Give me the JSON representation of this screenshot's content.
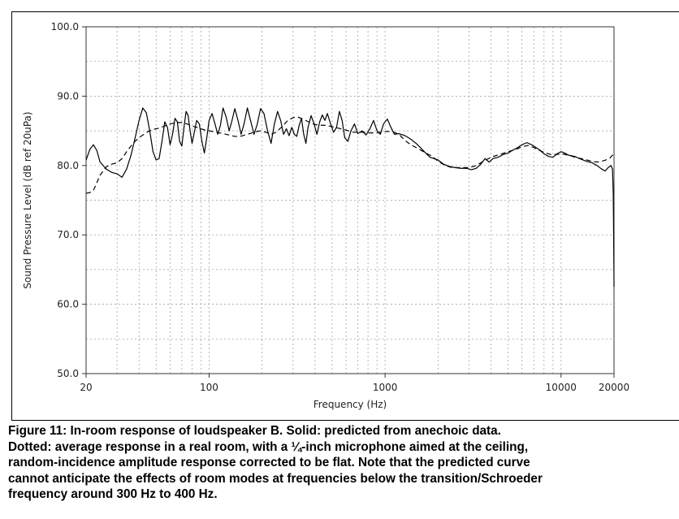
{
  "chart_data": {
    "type": "line",
    "title": "",
    "xlabel": "Frequency (Hz)",
    "ylabel": "Sound Pressure Level (dB ref 20uPa)",
    "xscale": "log",
    "xlim": [
      20,
      20000
    ],
    "ylim": [
      50,
      100
    ],
    "x_ticks": [
      {
        "value": 20,
        "label": "20"
      },
      {
        "value": 100,
        "label": "100"
      },
      {
        "value": 1000,
        "label": "1000"
      },
      {
        "value": 10000,
        "label": "10000"
      },
      {
        "value": 20000,
        "label": "20000"
      }
    ],
    "y_ticks": [
      {
        "value": 50,
        "label": "50.0"
      },
      {
        "value": 60,
        "label": "60.0"
      },
      {
        "value": 70,
        "label": "70.0"
      },
      {
        "value": 80,
        "label": "80.0"
      },
      {
        "value": 90,
        "label": "90.0"
      },
      {
        "value": 100,
        "label": "100.0"
      }
    ],
    "grid": true,
    "series": [
      {
        "name": "Solid: predicted from anechoic data",
        "style": "solid",
        "color": "#000000",
        "points": [
          [
            20,
            80.8
          ],
          [
            21,
            82.3
          ],
          [
            22,
            83.0
          ],
          [
            23,
            82.2
          ],
          [
            24,
            80.5
          ],
          [
            26,
            79.5
          ],
          [
            28,
            79.0
          ],
          [
            30,
            78.8
          ],
          [
            32,
            78.3
          ],
          [
            34,
            79.5
          ],
          [
            36,
            81.5
          ],
          [
            38,
            84.0
          ],
          [
            40,
            86.5
          ],
          [
            42,
            88.3
          ],
          [
            44,
            87.6
          ],
          [
            46,
            85.0
          ],
          [
            48,
            82.0
          ],
          [
            50,
            80.8
          ],
          [
            52,
            81.0
          ],
          [
            54,
            83.5
          ],
          [
            56,
            86.3
          ],
          [
            58,
            85.5
          ],
          [
            60,
            83.0
          ],
          [
            62,
            84.5
          ],
          [
            64,
            86.8
          ],
          [
            66,
            86.3
          ],
          [
            68,
            83.5
          ],
          [
            70,
            82.8
          ],
          [
            72,
            85.5
          ],
          [
            74,
            87.8
          ],
          [
            76,
            87.2
          ],
          [
            78,
            85.0
          ],
          [
            80,
            83.2
          ],
          [
            82,
            84.5
          ],
          [
            85,
            86.5
          ],
          [
            88,
            86.0
          ],
          [
            91,
            83.5
          ],
          [
            94,
            81.8
          ],
          [
            97,
            84.0
          ],
          [
            100,
            86.5
          ],
          [
            104,
            87.5
          ],
          [
            108,
            86.0
          ],
          [
            112,
            84.5
          ],
          [
            116,
            85.8
          ],
          [
            120,
            88.3
          ],
          [
            125,
            87.0
          ],
          [
            130,
            85.0
          ],
          [
            135,
            86.5
          ],
          [
            140,
            88.2
          ],
          [
            146,
            86.5
          ],
          [
            152,
            84.5
          ],
          [
            158,
            86.0
          ],
          [
            165,
            88.3
          ],
          [
            172,
            86.5
          ],
          [
            180,
            84.5
          ],
          [
            188,
            86.0
          ],
          [
            196,
            88.2
          ],
          [
            205,
            87.5
          ],
          [
            215,
            85.0
          ],
          [
            225,
            83.2
          ],
          [
            235,
            86.0
          ],
          [
            245,
            87.8
          ],
          [
            255,
            86.5
          ],
          [
            265,
            84.5
          ],
          [
            275,
            85.3
          ],
          [
            285,
            84.3
          ],
          [
            295,
            85.5
          ],
          [
            305,
            84.5
          ],
          [
            315,
            84.2
          ],
          [
            325,
            85.8
          ],
          [
            335,
            86.8
          ],
          [
            345,
            84.5
          ],
          [
            355,
            83.2
          ],
          [
            365,
            85.5
          ],
          [
            380,
            87.2
          ],
          [
            395,
            86.0
          ],
          [
            410,
            84.5
          ],
          [
            425,
            86.3
          ],
          [
            440,
            87.3
          ],
          [
            455,
            86.5
          ],
          [
            470,
            87.5
          ],
          [
            490,
            86.0
          ],
          [
            510,
            84.8
          ],
          [
            530,
            85.5
          ],
          [
            550,
            87.8
          ],
          [
            570,
            86.5
          ],
          [
            590,
            84.0
          ],
          [
            615,
            83.5
          ],
          [
            640,
            85.0
          ],
          [
            670,
            86.0
          ],
          [
            700,
            84.6
          ],
          [
            740,
            85.0
          ],
          [
            780,
            84.4
          ],
          [
            820,
            85.3
          ],
          [
            860,
            86.5
          ],
          [
            900,
            85.0
          ],
          [
            940,
            84.5
          ],
          [
            980,
            86.0
          ],
          [
            1030,
            86.7
          ],
          [
            1080,
            85.5
          ],
          [
            1130,
            84.5
          ],
          [
            1200,
            84.6
          ],
          [
            1300,
            84.3
          ],
          [
            1400,
            83.8
          ],
          [
            1500,
            83.2
          ],
          [
            1600,
            82.5
          ],
          [
            1700,
            81.8
          ],
          [
            1800,
            81.2
          ],
          [
            1900,
            81.0
          ],
          [
            2000,
            80.8
          ],
          [
            2150,
            80.2
          ],
          [
            2300,
            79.9
          ],
          [
            2500,
            79.7
          ],
          [
            2700,
            79.6
          ],
          [
            2900,
            79.6
          ],
          [
            3100,
            79.4
          ],
          [
            3300,
            79.6
          ],
          [
            3500,
            80.2
          ],
          [
            3700,
            81.0
          ],
          [
            3900,
            80.5
          ],
          [
            4100,
            81.0
          ],
          [
            4400,
            81.2
          ],
          [
            4700,
            81.6
          ],
          [
            5000,
            81.8
          ],
          [
            5300,
            82.2
          ],
          [
            5600,
            82.5
          ],
          [
            6000,
            83.0
          ],
          [
            6400,
            83.3
          ],
          [
            6800,
            83.0
          ],
          [
            7200,
            82.6
          ],
          [
            7600,
            82.2
          ],
          [
            8000,
            81.7
          ],
          [
            8500,
            81.3
          ],
          [
            9000,
            81.2
          ],
          [
            9500,
            81.7
          ],
          [
            10000,
            82.0
          ],
          [
            10500,
            81.8
          ],
          [
            11000,
            81.5
          ],
          [
            12000,
            81.3
          ],
          [
            13000,
            80.9
          ],
          [
            14000,
            80.6
          ],
          [
            15000,
            80.4
          ],
          [
            16000,
            80.0
          ],
          [
            17000,
            79.5
          ],
          [
            17800,
            79.2
          ],
          [
            18500,
            79.7
          ],
          [
            19200,
            80.0
          ],
          [
            19600,
            79.5
          ],
          [
            19800,
            76.0
          ],
          [
            19900,
            70.0
          ],
          [
            20000,
            62.5
          ]
        ]
      },
      {
        "name": "Dotted: average response in a real room",
        "style": "dashed",
        "color": "#000000",
        "points": [
          [
            20,
            76.0
          ],
          [
            21,
            76.1
          ],
          [
            22,
            76.4
          ],
          [
            23,
            77.5
          ],
          [
            24,
            78.6
          ],
          [
            26,
            79.8
          ],
          [
            28,
            80.2
          ],
          [
            30,
            80.4
          ],
          [
            32,
            81.0
          ],
          [
            34,
            82.0
          ],
          [
            36,
            82.8
          ],
          [
            38,
            83.5
          ],
          [
            40,
            84.0
          ],
          [
            42,
            84.4
          ],
          [
            45,
            84.9
          ],
          [
            48,
            85.2
          ],
          [
            52,
            85.4
          ],
          [
            56,
            85.7
          ],
          [
            60,
            86.0
          ],
          [
            65,
            86.2
          ],
          [
            70,
            86.2
          ],
          [
            75,
            86.0
          ],
          [
            80,
            85.7
          ],
          [
            85,
            85.5
          ],
          [
            90,
            85.3
          ],
          [
            95,
            85.1
          ],
          [
            100,
            85.0
          ],
          [
            110,
            84.8
          ],
          [
            120,
            84.6
          ],
          [
            130,
            84.4
          ],
          [
            140,
            84.2
          ],
          [
            150,
            84.2
          ],
          [
            160,
            84.4
          ],
          [
            170,
            84.6
          ],
          [
            180,
            84.8
          ],
          [
            195,
            85.0
          ],
          [
            210,
            84.8
          ],
          [
            225,
            84.5
          ],
          [
            240,
            84.8
          ],
          [
            260,
            85.6
          ],
          [
            280,
            86.5
          ],
          [
            300,
            86.9
          ],
          [
            320,
            87.0
          ],
          [
            340,
            86.7
          ],
          [
            360,
            86.4
          ],
          [
            390,
            86.0
          ],
          [
            420,
            85.8
          ],
          [
            460,
            85.8
          ],
          [
            500,
            85.6
          ],
          [
            540,
            85.4
          ],
          [
            580,
            85.2
          ],
          [
            620,
            85.0
          ],
          [
            660,
            84.8
          ],
          [
            700,
            84.8
          ],
          [
            760,
            84.8
          ],
          [
            820,
            84.7
          ],
          [
            880,
            84.7
          ],
          [
            940,
            84.8
          ],
          [
            1000,
            84.9
          ],
          [
            1100,
            84.9
          ],
          [
            1200,
            84.5
          ],
          [
            1300,
            83.6
          ],
          [
            1400,
            83.0
          ],
          [
            1500,
            82.6
          ],
          [
            1600,
            82.2
          ],
          [
            1700,
            81.8
          ],
          [
            1800,
            81.5
          ],
          [
            1900,
            81.1
          ],
          [
            2000,
            80.6
          ],
          [
            2200,
            80.0
          ],
          [
            2400,
            79.7
          ],
          [
            2700,
            79.7
          ],
          [
            3000,
            79.7
          ],
          [
            3300,
            80.0
          ],
          [
            3500,
            80.4
          ],
          [
            3800,
            80.9
          ],
          [
            4100,
            81.3
          ],
          [
            4500,
            81.6
          ],
          [
            5000,
            82.0
          ],
          [
            5500,
            82.3
          ],
          [
            6000,
            82.7
          ],
          [
            6500,
            82.9
          ],
          [
            7000,
            82.6
          ],
          [
            7500,
            82.2
          ],
          [
            8000,
            81.9
          ],
          [
            8700,
            81.6
          ],
          [
            9500,
            81.6
          ],
          [
            10000,
            81.7
          ],
          [
            11000,
            81.5
          ],
          [
            12000,
            81.2
          ],
          [
            13000,
            81.0
          ],
          [
            14000,
            80.8
          ],
          [
            15000,
            80.6
          ],
          [
            16000,
            80.5
          ],
          [
            17000,
            80.6
          ],
          [
            18000,
            80.8
          ],
          [
            19000,
            81.1
          ],
          [
            19600,
            81.5
          ],
          [
            20000,
            81.0
          ]
        ]
      }
    ]
  },
  "caption": {
    "lines": [
      "Figure 11:  In-room response of loudspeaker B. Solid: predicted from anechoic data.",
      "Dotted: average response in a real room, with a ¼-inch microphone aimed at the ceiling,",
      "random-incidence amplitude response corrected to be flat.  Note that the predicted curve",
      "cannot anticipate the effects of room modes at frequencies below the transition/Schroeder",
      "frequency around 300 Hz to 400 Hz."
    ]
  }
}
